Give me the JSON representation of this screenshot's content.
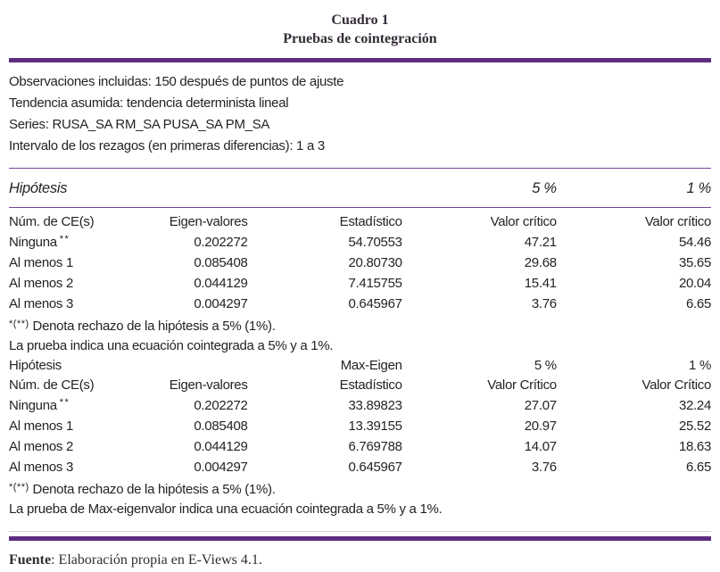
{
  "title": {
    "line1": "Cuadro 1",
    "line2": "Pruebas de cointegración"
  },
  "info": {
    "line1": "Observaciones incluidas: 150 después de puntos de ajuste",
    "line2": "Tendencia asumida: tendencia determinista lineal",
    "line3": "Series: RUSA_SA RM_SA PUSA_SA PM_SA",
    "line4": "Intervalo de los rezagos (en primeras diferencias): 1 a 3"
  },
  "trace_block": {
    "hypothesis_label": "Hipótesis",
    "pct5": "5 %",
    "pct1": "1 %",
    "headers": [
      "Núm. de CE(s)",
      "Eigen-valores",
      "Estadístico",
      "Valor crítico",
      "Valor crítico"
    ],
    "rows": [
      {
        "label": "Ninguna",
        "sup": "**",
        "eigen": "0.202272",
        "stat": "54.70553",
        "cv5": "47.21",
        "cv1": "54.46"
      },
      {
        "label": "Al menos 1",
        "sup": "",
        "eigen": "0.085408",
        "stat": "20.80730",
        "cv5": "29.68",
        "cv1": "35.65"
      },
      {
        "label": "Al menos 2",
        "sup": "",
        "eigen": "0.044129",
        "stat": "7.415755",
        "cv5": "15.41",
        "cv1": "20.04"
      },
      {
        "label": "Al menos 3",
        "sup": "",
        "eigen": "0.004297",
        "stat": "0.645967",
        "cv5": "3.76",
        "cv1": "6.65"
      }
    ],
    "note_marker": "*(**)",
    "note_text": " Denota rechazo de la hipótesis a 5% (1%).",
    "conclusion": "La prueba indica una ecuación cointegrada a 5% y a 1%."
  },
  "maxeigen_block": {
    "hypothesis_label": "Hipótesis",
    "maxeigen_label": "Max-Eigen",
    "pct5": "5 %",
    "pct1": "1 %",
    "headers": [
      "Núm. de CE(s)",
      "Eigen-valores",
      "Estadístico",
      "Valor Crítico",
      "Valor Crítico"
    ],
    "rows": [
      {
        "label": "Ninguna",
        "sup": "**",
        "eigen": "0.202272",
        "stat": "33.89823",
        "cv5": "27.07",
        "cv1": "32.24"
      },
      {
        "label": "Al menos 1",
        "sup": "",
        "eigen": "0.085408",
        "stat": "13.39155",
        "cv5": "20.97",
        "cv1": "25.52"
      },
      {
        "label": "Al menos 2",
        "sup": "",
        "eigen": "0.044129",
        "stat": "6.769788",
        "cv5": "14.07",
        "cv1": "18.63"
      },
      {
        "label": "Al menos 3",
        "sup": "",
        "eigen": "0.004297",
        "stat": "0.645967",
        "cv5": "3.76",
        "cv1": "6.65"
      }
    ],
    "note_marker": "*(**)",
    "note_text": " Denota rechazo de la hipótesis a 5% (1%).",
    "conclusion": "La prueba de Max-eigenvalor indica una ecuación cointegrada a 5% y a 1%."
  },
  "footer": {
    "source_label": "Fuente",
    "source_text": ": Elaboración propia en E-Views 4.1."
  },
  "colors": {
    "rule_thick": "#5e2d80",
    "rule_thin": "#6e4390",
    "rule_faint": "#d6cedd",
    "text": "#262226"
  }
}
